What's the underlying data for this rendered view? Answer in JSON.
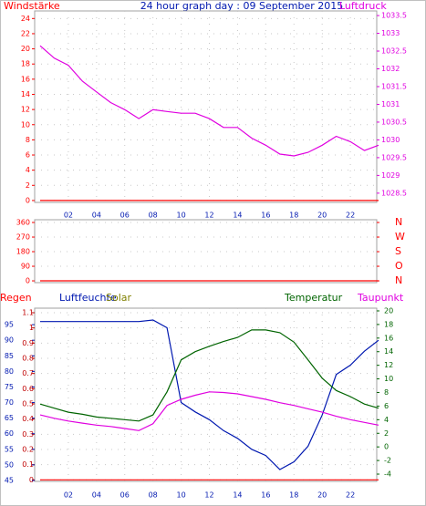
{
  "chart_data": [
    {
      "type": "line",
      "title": "24 hour graph day : 09 September 2015",
      "x": [
        0,
        1,
        2,
        3,
        4,
        5,
        6,
        7,
        8,
        9,
        10,
        11,
        12,
        13,
        14,
        15,
        16,
        17,
        18,
        19,
        20,
        21,
        22,
        23,
        24
      ],
      "xlim": [
        0,
        24
      ],
      "xticks": [
        {
          "value": 2,
          "label": "02"
        },
        {
          "value": 4,
          "label": "04"
        },
        {
          "value": 6,
          "label": "06"
        },
        {
          "value": 8,
          "label": "08"
        },
        {
          "value": 10,
          "label": "10"
        },
        {
          "value": 12,
          "label": "12"
        },
        {
          "value": 14,
          "label": "14"
        },
        {
          "value": 16,
          "label": "16"
        },
        {
          "value": 18,
          "label": "18"
        },
        {
          "value": 20,
          "label": "20"
        },
        {
          "value": 22,
          "label": "22"
        }
      ],
      "ylim": [
        -0.25,
        25
      ],
      "yticks": [
        0,
        2,
        4,
        6,
        8,
        10,
        12,
        14,
        16,
        18,
        20,
        22,
        24
      ],
      "ycolor": "#ff0000",
      "y2lim": [
        1028.24,
        1033.63
      ],
      "y2ticks": [
        1028.5,
        1029,
        1029.5,
        1030,
        1030.5,
        1031,
        1031.5,
        1032,
        1032.5,
        1033,
        1033.5
      ],
      "y2color": "#e000e0",
      "grid": true,
      "series": [
        {
          "name": "Windstärke",
          "color": "#ff0000",
          "values": [
            0,
            0,
            0,
            0,
            0,
            0,
            0,
            0,
            0,
            0,
            0,
            0,
            0,
            0,
            0,
            0,
            0,
            0,
            0,
            0,
            0,
            0,
            0,
            0,
            0
          ]
        },
        {
          "name": "Luftdruck",
          "color": "#e000e0",
          "axis": "y2",
          "values": [
            1032.65,
            1032.3,
            1032.1,
            1031.65,
            1031.35,
            1031.05,
            1030.85,
            1030.6,
            1030.85,
            1030.8,
            1030.75,
            1030.75,
            1030.6,
            1030.35,
            1030.35,
            1030.05,
            1029.85,
            1029.6,
            1029.55,
            1029.65,
            1029.85,
            1030.1,
            1029.95,
            1029.7,
            1029.85
          ]
        }
      ]
    },
    {
      "type": "line",
      "x": [
        0,
        1,
        2,
        3,
        4,
        5,
        6,
        7,
        8,
        9,
        10,
        11,
        12,
        13,
        14,
        15,
        16,
        17,
        18,
        19,
        20,
        21,
        22,
        23,
        24
      ],
      "xlim": [
        0,
        24
      ],
      "ylim": [
        -11,
        377
      ],
      "yticks": [
        0,
        90,
        180,
        270,
        360
      ],
      "ycolor": "#ff0000",
      "y2lim": [
        -11,
        377
      ],
      "y2ticks": [
        {
          "value": 0,
          "label": "N"
        },
        {
          "value": 90,
          "label": "O"
        },
        {
          "value": 180,
          "label": "S"
        },
        {
          "value": 270,
          "label": "W"
        },
        {
          "value": 360,
          "label": "N"
        }
      ],
      "y2color": "#ff0000",
      "grid": true,
      "series": [
        {
          "color": "#ff0000",
          "values": [
            0,
            0,
            0,
            0,
            0,
            0,
            0,
            0,
            0,
            0,
            0,
            0,
            0,
            0,
            0,
            0,
            0,
            0,
            0,
            0,
            0,
            0,
            0,
            0,
            0
          ]
        }
      ]
    },
    {
      "type": "line",
      "x": [
        0,
        1,
        2,
        3,
        4,
        5,
        6,
        7,
        8,
        9,
        10,
        11,
        12,
        13,
        14,
        15,
        16,
        17,
        18,
        19,
        20,
        21,
        22,
        23,
        24
      ],
      "xlim": [
        0,
        24
      ],
      "xticks": [
        {
          "value": 2,
          "label": "02"
        },
        {
          "value": 4,
          "label": "04"
        },
        {
          "value": 6,
          "label": "06"
        },
        {
          "value": 8,
          "label": "08"
        },
        {
          "value": 10,
          "label": "10"
        },
        {
          "value": 12,
          "label": "12"
        },
        {
          "value": 14,
          "label": "14"
        },
        {
          "value": 16,
          "label": "16"
        },
        {
          "value": 18,
          "label": "18"
        },
        {
          "value": 20,
          "label": "20"
        },
        {
          "value": 22,
          "label": "22"
        }
      ],
      "ylim": [
        -0.01,
        1.13
      ],
      "yticks": [
        0,
        0.1,
        0.2,
        0.3,
        0.4,
        0.5,
        0.6,
        0.7,
        0.8,
        0.9,
        1,
        1.1
      ],
      "ycolor": "#c00000",
      "y3lim": [
        44.7,
        100.3
      ],
      "y3ticks": [
        45,
        50,
        55,
        60,
        65,
        70,
        75,
        80,
        85,
        90,
        95
      ],
      "y3color": "#0018b0",
      "y2lim": [
        -5.07,
        20.4
      ],
      "y2ticks": [
        -4,
        -2,
        0,
        2,
        4,
        6,
        8,
        10,
        12,
        14,
        16,
        18,
        20
      ],
      "y2color": "#006400",
      "grid": true,
      "series": [
        {
          "name": "Regen",
          "color": "#ff0000",
          "values": [
            0,
            0,
            0,
            0,
            0,
            0,
            0,
            0,
            0,
            0,
            0,
            0,
            0,
            0,
            0,
            0,
            0,
            0,
            0,
            0,
            0,
            0,
            0,
            0,
            0
          ]
        },
        {
          "name": "Luftfeuchte",
          "color": "#0018b0",
          "axis": "y3",
          "values": [
            96,
            96,
            96,
            96,
            96,
            96,
            96,
            96,
            96.5,
            94,
            70,
            67,
            64.5,
            61,
            58.5,
            55,
            53,
            48.5,
            51,
            56,
            66,
            79,
            82,
            86.5,
            90
          ]
        },
        {
          "name": "Solar",
          "color": "#808000",
          "values": [
            null,
            null,
            null,
            null,
            null,
            null,
            null,
            null,
            null,
            null,
            null,
            null,
            null,
            null,
            null,
            null,
            null,
            null,
            null,
            null,
            null,
            null,
            null,
            null,
            null
          ]
        },
        {
          "name": "Temperatur",
          "color": "#006400",
          "axis": "y2",
          "values": [
            6.3,
            5.7,
            5.1,
            4.8,
            4.4,
            4.2,
            4.0,
            3.8,
            4.7,
            8.1,
            12.8,
            14.0,
            14.8,
            15.5,
            16.1,
            17.2,
            17.2,
            16.8,
            15.4,
            12.8,
            10.1,
            8.3,
            7.4,
            6.3,
            5.7
          ]
        },
        {
          "name": "Taupunkt",
          "color": "#e000e0",
          "axis": "y2",
          "values": [
            4.7,
            4.2,
            3.8,
            3.5,
            3.2,
            3.0,
            2.7,
            2.4,
            3.4,
            6.1,
            7.0,
            7.6,
            8.1,
            8.0,
            7.8,
            7.4,
            7.0,
            6.5,
            6.1,
            5.6,
            5.1,
            4.5,
            4.0,
            3.6,
            3.2
          ]
        }
      ]
    }
  ]
}
